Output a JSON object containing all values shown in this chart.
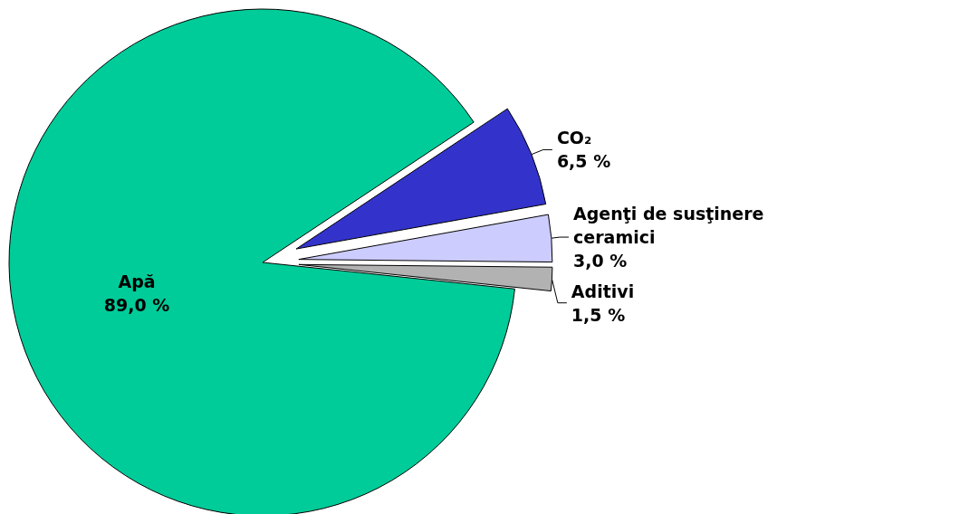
{
  "chart_data": {
    "type": "pie",
    "categories": [
      "Apă",
      "CO₂",
      "Agenţi de susţinere ceramici",
      "Aditivi"
    ],
    "values": [
      89.0,
      6.5,
      3.0,
      1.5
    ],
    "colors": [
      "#00cc99",
      "#3333cc",
      "#ccccff",
      "#b2b2b2"
    ],
    "value_labels": [
      "89,0 %",
      "6,5 %",
      "3,0 %",
      "1,5 %"
    ]
  }
}
